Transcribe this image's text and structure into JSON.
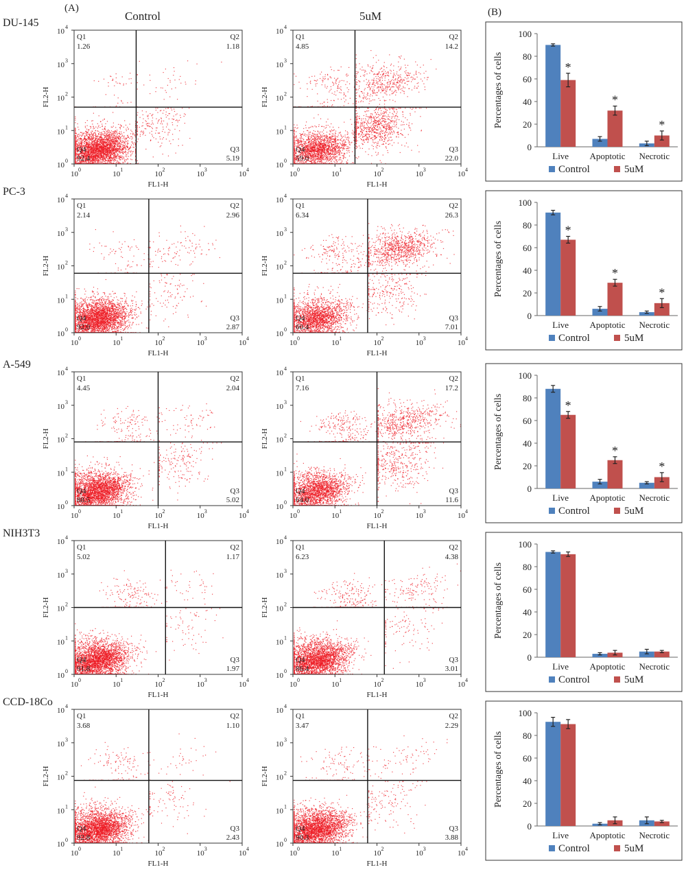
{
  "panel_labels": {
    "A": "(A)",
    "B": "(B)"
  },
  "column_headers": [
    "Control",
    "5uM"
  ],
  "flow_axis": {
    "xlabel": "FL1-H",
    "ylabel": "FL2-H",
    "ticks": [
      "10",
      "10",
      "10",
      "10",
      "10"
    ],
    "exponents": [
      "0",
      "1",
      "2",
      "3",
      "4"
    ]
  },
  "quadrant_names": [
    "Q1",
    "Q2",
    "Q3",
    "Q4"
  ],
  "bar_axis": {
    "ylabel": "Percentages of cells",
    "ticks": [
      "0",
      "20",
      "40",
      "60",
      "80",
      "100"
    ],
    "significance_mark": "*"
  },
  "bar_legend": [
    "Control",
    "5uM"
  ],
  "colors": {
    "control": "#4f81bd",
    "treated": "#c0504d",
    "dots": "#ee1c24"
  },
  "chart_data": [
    {
      "type": "scatter",
      "cell_line": "DU-145",
      "xlabel": "FL1-H",
      "ylabel": "FL2-H",
      "x_scale": "log",
      "y_scale": "log",
      "xlim": [
        1,
        10000
      ],
      "ylim": [
        1,
        10000
      ],
      "panels": [
        {
          "condition": "Control",
          "gate_x": 30,
          "gate_y": 50,
          "quadrants": {
            "Q1": "1.26",
            "Q2": "1.18",
            "Q3": "5.19",
            "Q4": "92.4"
          }
        },
        {
          "condition": "5uM",
          "gate_x": 30,
          "gate_y": 50,
          "quadrants": {
            "Q1": "4.85",
            "Q2": "14.2",
            "Q3": "22.0",
            "Q4": "59.0"
          }
        }
      ]
    },
    {
      "type": "bar",
      "cell_line": "DU-145",
      "ylabel": "Percentages of cells",
      "ylim": [
        0,
        100
      ],
      "categories": [
        "Live",
        "Apoptotic",
        "Necrotic"
      ],
      "series": [
        {
          "name": "Control",
          "values": [
            90,
            7,
            3
          ],
          "errors": [
            1,
            2,
            2
          ]
        },
        {
          "name": "5uM",
          "values": [
            59,
            32,
            10
          ],
          "errors": [
            6,
            4,
            4
          ]
        }
      ],
      "significant": [
        true,
        true,
        true
      ]
    },
    {
      "type": "scatter",
      "cell_line": "PC-3",
      "xlabel": "FL1-H",
      "ylabel": "FL2-H",
      "x_scale": "log",
      "y_scale": "log",
      "xlim": [
        1,
        10000
      ],
      "ylim": [
        1,
        10000
      ],
      "panels": [
        {
          "condition": "Control",
          "gate_x": 60,
          "gate_y": 60,
          "quadrants": {
            "Q1": "2.14",
            "Q2": "2.96",
            "Q3": "2.87",
            "Q4": "92.0"
          }
        },
        {
          "condition": "5uM",
          "gate_x": 60,
          "gate_y": 60,
          "quadrants": {
            "Q1": "6.34",
            "Q2": "26.3",
            "Q3": "7.01",
            "Q4": "60.4"
          }
        }
      ]
    },
    {
      "type": "bar",
      "cell_line": "PC-3",
      "ylabel": "Percentages of cells",
      "ylim": [
        0,
        100
      ],
      "categories": [
        "Live",
        "Apoptotic",
        "Necrotic"
      ],
      "series": [
        {
          "name": "Control",
          "values": [
            91,
            6,
            3
          ],
          "errors": [
            2,
            2,
            1
          ]
        },
        {
          "name": "5uM",
          "values": [
            67,
            29,
            11
          ],
          "errors": [
            3,
            3,
            4
          ]
        }
      ],
      "significant": [
        true,
        true,
        true
      ]
    },
    {
      "type": "scatter",
      "cell_line": "A-549",
      "xlabel": "FL1-H",
      "ylabel": "FL2-H",
      "x_scale": "log",
      "y_scale": "log",
      "xlim": [
        1,
        10000
      ],
      "ylim": [
        1,
        10000
      ],
      "panels": [
        {
          "condition": "Control",
          "gate_x": 100,
          "gate_y": 80,
          "quadrants": {
            "Q1": "4.45",
            "Q2": "2.04",
            "Q3": "5.02",
            "Q4": "88.5"
          }
        },
        {
          "condition": "5uM",
          "gate_x": 100,
          "gate_y": 80,
          "quadrants": {
            "Q1": "7.16",
            "Q2": "17.2",
            "Q3": "11.6",
            "Q4": "64.0"
          }
        }
      ]
    },
    {
      "type": "bar",
      "cell_line": "A-549",
      "ylabel": "Percentages of cells",
      "ylim": [
        0,
        100
      ],
      "categories": [
        "Live",
        "Apoptotic",
        "Necrotic"
      ],
      "series": [
        {
          "name": "Control",
          "values": [
            88,
            6,
            5
          ],
          "errors": [
            3,
            2,
            1
          ]
        },
        {
          "name": "5uM",
          "values": [
            65,
            25,
            10
          ],
          "errors": [
            3,
            3,
            4
          ]
        }
      ],
      "significant": [
        true,
        true,
        true
      ]
    },
    {
      "type": "scatter",
      "cell_line": "NIH3T3",
      "xlabel": "FL1-H",
      "ylabel": "FL2-H",
      "x_scale": "log",
      "y_scale": "log",
      "xlim": [
        1,
        10000
      ],
      "ylim": [
        1,
        10000
      ],
      "panels": [
        {
          "condition": "Control",
          "gate_x": 150,
          "gate_y": 100,
          "quadrants": {
            "Q1": "5.02",
            "Q2": "1.17",
            "Q3": "1.97",
            "Q4": "91.8"
          }
        },
        {
          "condition": "5uM",
          "gate_x": 150,
          "gate_y": 100,
          "quadrants": {
            "Q1": "6.23",
            "Q2": "4.38",
            "Q3": "3.01",
            "Q4": "86.4"
          }
        }
      ]
    },
    {
      "type": "bar",
      "cell_line": "NIH3T3",
      "ylabel": "Percentages of cells",
      "ylim": [
        0,
        100
      ],
      "categories": [
        "Live",
        "Apoptotic",
        "Necrotic"
      ],
      "series": [
        {
          "name": "Control",
          "values": [
            93,
            3,
            5
          ],
          "errors": [
            1,
            1,
            2
          ]
        },
        {
          "name": "5uM",
          "values": [
            91,
            4,
            5
          ],
          "errors": [
            2,
            2,
            1
          ]
        }
      ],
      "significant": [
        false,
        false,
        false
      ]
    },
    {
      "type": "scatter",
      "cell_line": "CCD-18Co",
      "xlabel": "FL1-H",
      "ylabel": "FL2-H",
      "x_scale": "log",
      "y_scale": "log",
      "xlim": [
        1,
        10000
      ],
      "ylim": [
        1,
        10000
      ],
      "panels": [
        {
          "condition": "Control",
          "gate_x": 60,
          "gate_y": 75,
          "quadrants": {
            "Q1": "3.68",
            "Q2": "1.10",
            "Q3": "2.43",
            "Q4": "92.8"
          }
        },
        {
          "condition": "5uM",
          "gate_x": 60,
          "gate_y": 75,
          "quadrants": {
            "Q1": "3.47",
            "Q2": "2.29",
            "Q3": "3.88",
            "Q4": "90.3"
          }
        }
      ]
    },
    {
      "type": "bar",
      "cell_line": "CCD-18Co",
      "ylabel": "Percentages of cells",
      "ylim": [
        0,
        100
      ],
      "categories": [
        "Live",
        "Apoptotic",
        "Necrotic"
      ],
      "series": [
        {
          "name": "Control",
          "values": [
            92,
            2,
            5
          ],
          "errors": [
            4,
            1,
            3
          ]
        },
        {
          "name": "5uM",
          "values": [
            90,
            5,
            4
          ],
          "errors": [
            4,
            3,
            1
          ]
        }
      ],
      "significant": [
        false,
        false,
        false
      ]
    }
  ]
}
